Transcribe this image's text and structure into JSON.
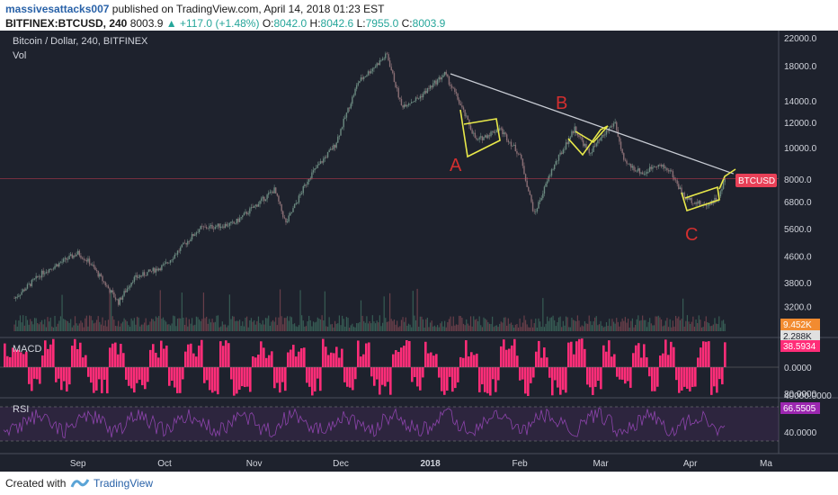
{
  "header": {
    "author": "massivesattacks007",
    "published_text": "published on TradingView.com, April 14, 2018 01:23 EST",
    "symbol": "BITFINEX:BTCUSD, 240",
    "last": "8003.9",
    "change": "▲ +117.0 (+1.48%)",
    "o_label": "O:",
    "o_value": "8042.0",
    "h_label": "H:",
    "h_value": "8042.6",
    "l_label": "L:",
    "l_value": "7955.0",
    "c_label": "C:",
    "c_value": "8003.9"
  },
  "chart": {
    "title": "Bitcoin / Dollar, 240, BITFINEX",
    "vol_label": "Vol",
    "macd_label": "MACD",
    "rsi_label": "RSI",
    "symbol_tag": "BTCUSD",
    "vol_tags": [
      "9.452K",
      "2.288K"
    ],
    "macd_tag": "38.5934",
    "macd_zero": "0.0000",
    "macd_top": "40000.0000",
    "rsi_tag": "66.5505",
    "rsi_mid": "40.0000",
    "rsi_top": "80.0000",
    "wave_labels": [
      "A",
      "B",
      "C"
    ]
  },
  "colors": {
    "bg": "#1e222d",
    "candle_up": "#6b8a80",
    "candle_down": "#8a6f75",
    "trendline": "#c8ccd4",
    "pattern": "#e8e84a",
    "wave_label": "#d32f2f",
    "macd": "#ff2d78",
    "rsi": "#8e44ad",
    "price_tag": "#e84057"
  },
  "footer": {
    "created": "Created with",
    "brand": "TradingView"
  },
  "chart_data": {
    "type": "line",
    "title": "Bitcoin / Dollar, 240, BITFINEX",
    "xlabel": "",
    "ylabel": "",
    "y_scale": "log",
    "ylim": [
      2900,
      22000
    ],
    "y_ticks": [
      22000,
      18000,
      14000,
      12000,
      10000,
      8000,
      6800,
      5600,
      4600,
      3800,
      3200
    ],
    "x_ticks": [
      "Sep",
      "Oct",
      "Nov",
      "Dec",
      "2018",
      "Feb",
      "Mar",
      "Apr",
      "Ma"
    ],
    "grid": false,
    "series": [
      {
        "values": [
          [
            "2017-08-10",
            3400
          ],
          [
            "2017-08-20",
            4100
          ],
          [
            "2017-09-01",
            4700
          ],
          [
            "2017-09-05",
            4400
          ],
          [
            "2017-09-15",
            3300
          ],
          [
            "2017-09-20",
            3900
          ],
          [
            "2017-10-01",
            4300
          ],
          [
            "2017-10-13",
            5600
          ],
          [
            "2017-10-25",
            5800
          ],
          [
            "2017-11-08",
            7400
          ],
          [
            "2017-11-12",
            5800
          ],
          [
            "2017-11-20",
            8100
          ],
          [
            "2017-11-29",
            10200
          ],
          [
            "2017-12-07",
            16000
          ],
          [
            "2017-12-17",
            19500
          ],
          [
            "2017-12-22",
            13500
          ],
          [
            "2017-12-28",
            14300
          ],
          [
            "2018-01-06",
            17000
          ],
          [
            "2018-01-10",
            14500
          ],
          [
            "2018-01-17",
            10500
          ],
          [
            "2018-01-25",
            11500
          ],
          [
            "2018-02-01",
            9500
          ],
          [
            "2018-02-06",
            6200
          ],
          [
            "2018-02-12",
            8500
          ],
          [
            "2018-02-20",
            11500
          ],
          [
            "2018-02-25",
            9600
          ],
          [
            "2018-03-04",
            11500
          ],
          [
            "2018-03-06",
            12000
          ],
          [
            "2018-03-09",
            9000
          ],
          [
            "2018-03-16",
            8300
          ],
          [
            "2018-03-20",
            8900
          ],
          [
            "2018-03-25",
            8500
          ],
          [
            "2018-03-30",
            7000
          ],
          [
            "2018-04-06",
            6600
          ],
          [
            "2018-04-11",
            7000
          ],
          [
            "2018-04-13",
            8000
          ]
        ]
      }
    ],
    "annotations": [
      {
        "type": "trendline",
        "from": [
          "2018-01-08",
          17000
        ],
        "to": [
          "2018-04-16",
          8300
        ]
      },
      {
        "type": "label",
        "text": "A",
        "at": [
          "2018-01-15",
          9100
        ]
      },
      {
        "type": "label",
        "text": "B",
        "at": [
          "2018-02-22",
          13600
        ]
      },
      {
        "type": "label",
        "text": "C",
        "at": [
          "2018-04-09",
          5700
        ]
      }
    ],
    "last_price": 8003.9,
    "indicators": {
      "vol_last": [
        "9.452K",
        "2.288K"
      ],
      "macd_last": 38.5934,
      "rsi_last": 66.5505,
      "rsi_levels": [
        40,
        80
      ]
    }
  }
}
